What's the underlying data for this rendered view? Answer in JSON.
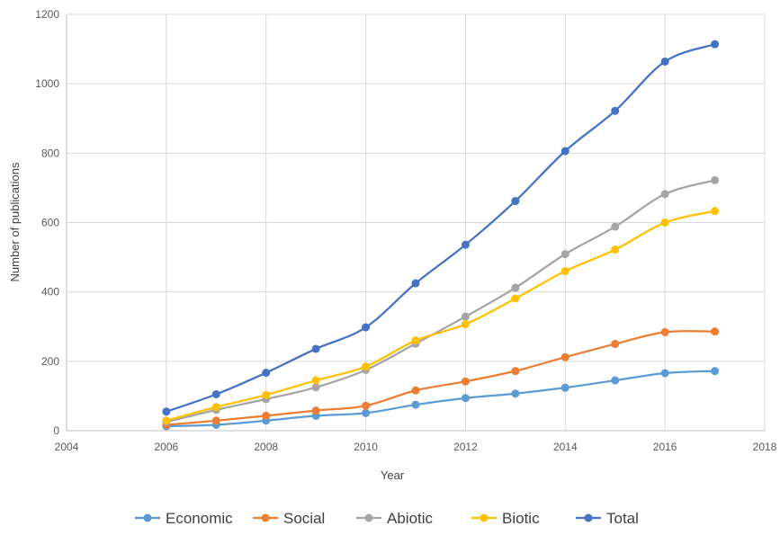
{
  "chart_data": {
    "type": "line",
    "title": "",
    "xlabel": "Year",
    "ylabel": "Number of publications",
    "xlim": [
      2004,
      2018
    ],
    "ylim": [
      0,
      1200
    ],
    "xticks": [
      2004,
      2006,
      2008,
      2010,
      2012,
      2014,
      2016,
      2018
    ],
    "yticks": [
      0,
      200,
      400,
      600,
      800,
      1000,
      1200
    ],
    "grid": true,
    "legend_position": "bottom",
    "x": [
      2006,
      2007,
      2008,
      2009,
      2010,
      2011,
      2012,
      2013,
      2014,
      2015,
      2016,
      2017
    ],
    "series": [
      {
        "name": "Economic",
        "color": "#5B9BD5",
        "values": [
          13,
          17,
          29,
          43,
          51,
          75,
          94,
          107,
          124,
          145,
          166,
          172
        ]
      },
      {
        "name": "Social",
        "color": "#ED7D31",
        "values": [
          17,
          29,
          43,
          58,
          72,
          116,
          142,
          172,
          212,
          250,
          284,
          286
        ]
      },
      {
        "name": "Abiotic",
        "color": "#A5A5A5",
        "values": [
          25,
          60,
          91,
          125,
          175,
          251,
          329,
          412,
          509,
          588,
          682,
          722
        ]
      },
      {
        "name": "Biotic",
        "color": "#FFC000",
        "values": [
          29,
          68,
          103,
          145,
          185,
          260,
          307,
          381,
          460,
          522,
          600,
          633
        ]
      },
      {
        "name": "Total",
        "color": "#4472C4",
        "values": [
          55,
          105,
          167,
          236,
          298,
          425,
          536,
          662,
          806,
          922,
          1064,
          1114
        ]
      }
    ]
  }
}
